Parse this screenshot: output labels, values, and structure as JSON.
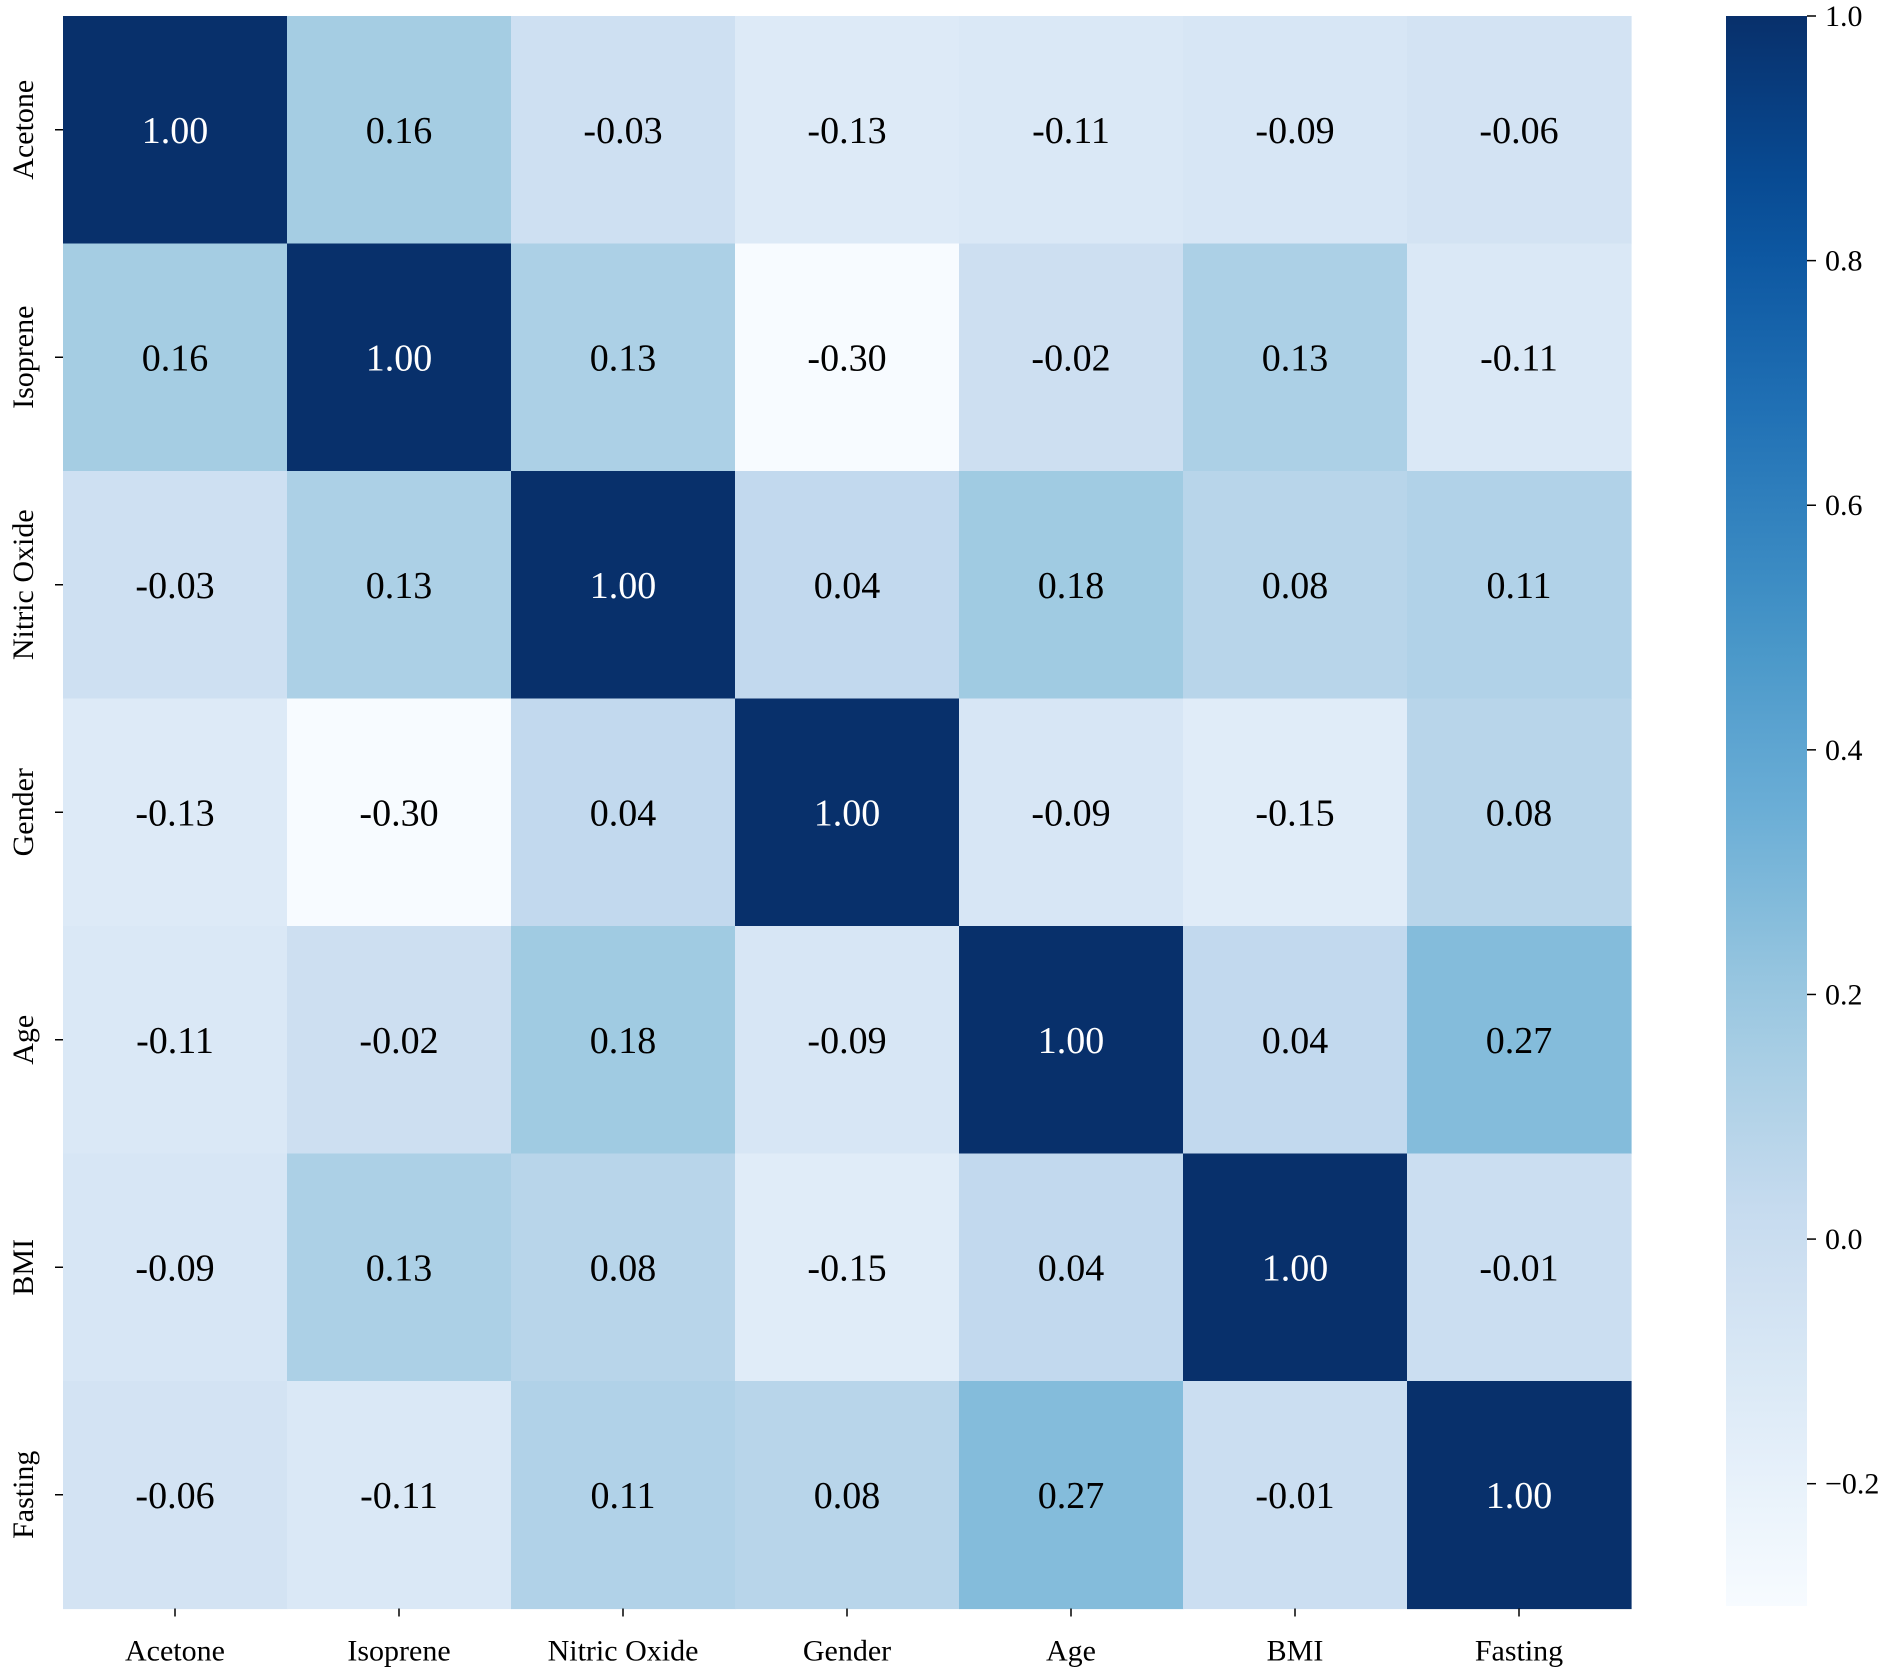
{
  "chart_data": {
    "type": "heatmap",
    "title": "",
    "xlabel": "",
    "ylabel": "",
    "x_labels": [
      "Acetone",
      "Isoprene",
      "Nitric Oxide",
      "Gender",
      "Age",
      "BMI",
      "Fasting"
    ],
    "y_labels": [
      "Acetone",
      "Isoprene",
      "Nitric Oxide",
      "Gender",
      "Age",
      "BMI",
      "Fasting"
    ],
    "values": [
      [
        1.0,
        0.16,
        -0.03,
        -0.13,
        -0.11,
        -0.09,
        -0.06
      ],
      [
        0.16,
        1.0,
        0.13,
        -0.3,
        -0.02,
        0.13,
        -0.11
      ],
      [
        -0.03,
        0.13,
        1.0,
        0.04,
        0.18,
        0.08,
        0.11
      ],
      [
        -0.13,
        -0.3,
        0.04,
        1.0,
        -0.09,
        -0.15,
        0.08
      ],
      [
        -0.11,
        -0.02,
        0.18,
        -0.09,
        1.0,
        0.04,
        0.27
      ],
      [
        -0.09,
        0.13,
        0.08,
        -0.15,
        0.04,
        1.0,
        -0.01
      ],
      [
        -0.06,
        -0.11,
        0.11,
        0.08,
        0.27,
        -0.01,
        1.0
      ]
    ],
    "value_format": "0.00",
    "colormap": "Blues",
    "color_range": [
      -0.3,
      1.0
    ],
    "colorbar": {
      "ticks": [
        1.0,
        0.8,
        0.6,
        0.4,
        0.2,
        0.0,
        -0.2
      ],
      "tick_labels": [
        "1.0",
        "0.8",
        "0.6",
        "0.4",
        "0.2",
        "0.0",
        "−0.2"
      ],
      "placement": "right"
    },
    "grid": false
  }
}
